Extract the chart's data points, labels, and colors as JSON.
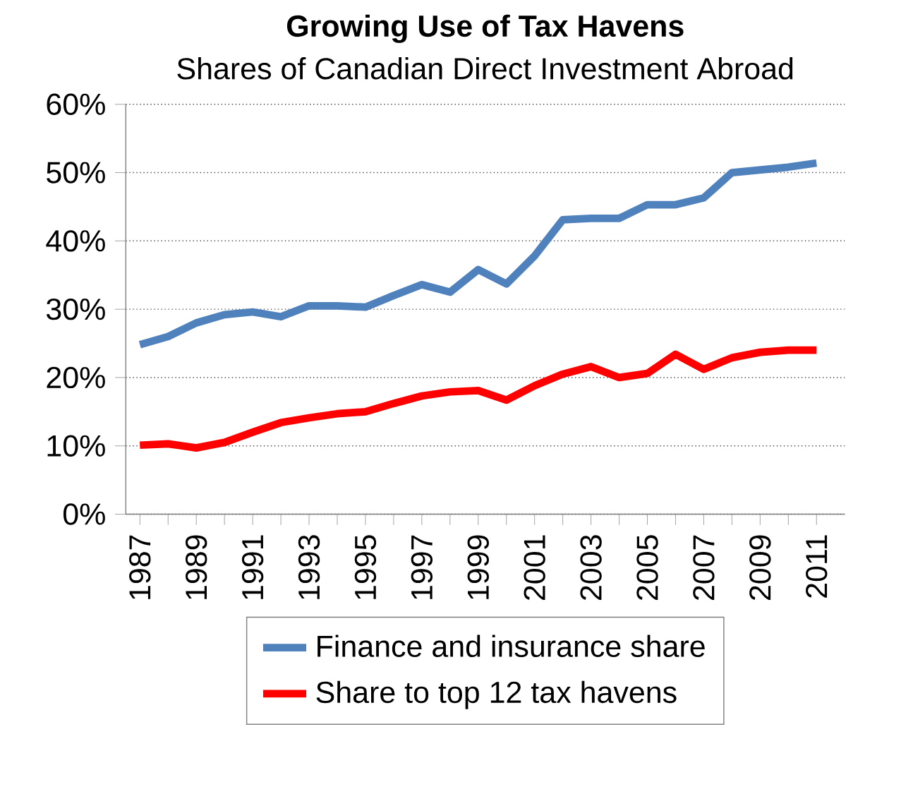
{
  "chart_data": {
    "type": "line",
    "title": "Growing Use of Tax Havens",
    "subtitle": "Shares of Canadian Direct Investment Abroad",
    "categories": [
      "1987",
      null,
      "1989",
      null,
      "1991",
      null,
      "1993",
      null,
      "1995",
      null,
      "1997",
      null,
      "1999",
      null,
      "2001",
      null,
      "2003",
      null,
      "2005",
      null,
      "2007",
      null,
      "2009",
      null,
      "2011"
    ],
    "series": [
      {
        "name": "Finance and insurance share",
        "color": "#4f81bd",
        "values": [
          24.8,
          26,
          28,
          29.2,
          29.6,
          28.9,
          30.5,
          30.5,
          30.3,
          32,
          33.6,
          32.5,
          35.8,
          33.7,
          37.8,
          43.1,
          43.3,
          43.3,
          45.3,
          45.3,
          46.3,
          50,
          50.4,
          50.8,
          51.4
        ]
      },
      {
        "name": "Share to top 12 tax havens",
        "color": "#ff0000",
        "values": [
          10.1,
          10.3,
          9.7,
          10.5,
          12,
          13.4,
          14.1,
          14.7,
          15,
          16.2,
          17.3,
          17.9,
          18.1,
          16.7,
          18.8,
          20.5,
          21.6,
          20,
          20.6,
          23.4,
          21.2,
          22.9,
          23.7,
          24,
          24
        ]
      }
    ],
    "ylim": [
      0,
      60
    ],
    "yticks": [
      {
        "value": 0,
        "label": "0%"
      },
      {
        "value": 10,
        "label": "10%"
      },
      {
        "value": 20,
        "label": "20%"
      },
      {
        "value": 30,
        "label": "30%"
      },
      {
        "value": 40,
        "label": "40%"
      },
      {
        "value": 50,
        "label": "50%"
      },
      {
        "value": 60,
        "label": "60%"
      }
    ],
    "grid": "y",
    "legend": "bottom",
    "marker": "none",
    "line_style": "solid"
  }
}
